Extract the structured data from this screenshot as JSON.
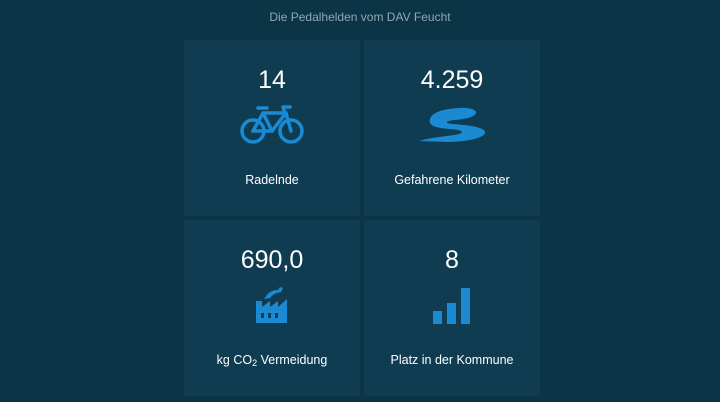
{
  "header": {
    "title": "Die Pedalhelden vom DAV Feucht"
  },
  "tiles": [
    {
      "value": "14",
      "label": "Radelnde",
      "icon": "bicycle-icon"
    },
    {
      "value": "4.259",
      "label": "Gefahrene Kilometer",
      "icon": "road-icon"
    },
    {
      "value": "690,0",
      "label_pre": "kg CO",
      "label_sub": "2",
      "label_post": " Vermeidung",
      "icon": "factory-icon"
    },
    {
      "value": "8",
      "label": "Platz in der Kommune",
      "icon": "bar-chart-icon"
    }
  ],
  "colors": {
    "background": "#0c3447",
    "tile": "#0f3c51",
    "icon": "#1a8ad2",
    "header_text": "#8fa8b5"
  }
}
